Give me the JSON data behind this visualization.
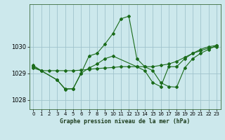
{
  "title": "Graphe pression niveau de la mer (hPa)",
  "bg_color": "#cce8ec",
  "grid_color": "#a0c4cc",
  "line_color": "#1a6b1a",
  "xlim": [
    -0.5,
    23.5
  ],
  "ylim": [
    1027.65,
    1031.6
  ],
  "yticks": [
    1028,
    1029,
    1030
  ],
  "xticks": [
    0,
    1,
    2,
    3,
    4,
    5,
    6,
    7,
    8,
    9,
    10,
    11,
    12,
    13,
    14,
    15,
    16,
    17,
    18,
    19,
    20,
    21,
    22,
    23
  ],
  "series": [
    {
      "x": [
        0,
        1,
        2,
        3,
        4,
        5,
        6,
        7,
        8,
        9,
        10,
        11,
        12,
        13,
        14,
        15,
        16,
        17,
        18,
        19,
        20,
        21,
        22,
        23
      ],
      "y": [
        1029.2,
        1029.1,
        1029.1,
        1029.1,
        1029.1,
        1029.1,
        1029.12,
        1029.15,
        1029.18,
        1029.2,
        1029.22,
        1029.25,
        1029.25,
        1029.25,
        1029.25,
        1029.25,
        1029.3,
        1029.35,
        1029.45,
        1029.6,
        1029.75,
        1029.85,
        1029.95,
        1030.0
      ]
    },
    {
      "x": [
        0,
        1,
        3,
        4,
        5,
        6,
        7,
        8,
        9,
        10,
        11,
        12,
        13,
        14,
        15,
        16,
        17,
        18,
        19,
        20,
        21,
        22,
        23
      ],
      "y": [
        1029.25,
        1029.1,
        1028.75,
        1028.4,
        1028.42,
        1029.0,
        1029.65,
        1029.75,
        1030.1,
        1030.5,
        1031.05,
        1031.15,
        1029.55,
        1029.25,
        1029.1,
        1028.65,
        1028.5,
        1028.48,
        1029.2,
        1029.55,
        1029.75,
        1029.9,
        1030.05
      ]
    },
    {
      "x": [
        0,
        1,
        3,
        4,
        5,
        6,
        7,
        8,
        9,
        10,
        13,
        14,
        15,
        16,
        17,
        18,
        19,
        20,
        21,
        22,
        23
      ],
      "y": [
        1029.3,
        1029.1,
        1028.75,
        1028.42,
        1028.42,
        1029.0,
        1029.2,
        1029.35,
        1029.55,
        1029.65,
        1029.25,
        1029.1,
        1028.65,
        1028.5,
        1029.25,
        1029.25,
        1029.55,
        1029.75,
        1029.9,
        1030.0,
        1030.05
      ]
    }
  ]
}
